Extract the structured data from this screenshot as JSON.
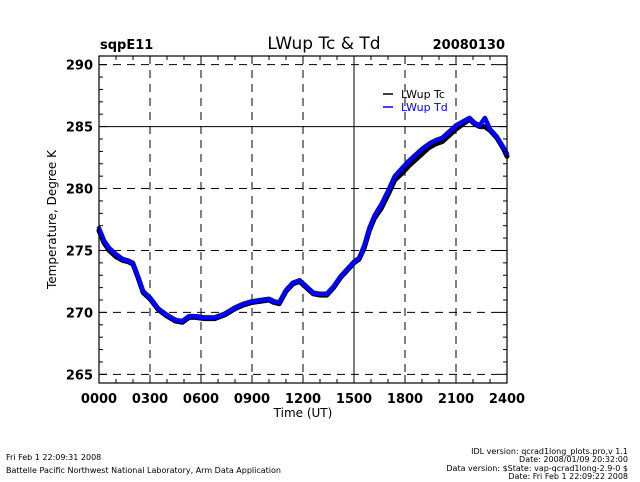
{
  "header": {
    "site": "sqpE11",
    "title": "LWup Tc & Td",
    "date": "20080130"
  },
  "footer": {
    "left_line1": "Fri Feb  1 22:09:31 2008",
    "left_line2": "Battelle Pacific Northwest National Laboratory, Arm Data Application",
    "right_lines": [
      "IDL version: qcrad1long_plots.pro,v 1.1",
      "Date: 2008/01/09 20:32:00",
      "Data version: $State: vap-qcrad1long-2.9-0 $",
      "Date: Fri Feb  1 22:09:22 2008"
    ]
  },
  "chart_data": {
    "type": "line",
    "title": "LWup Tc & Td",
    "xlabel": "Time (UT)",
    "ylabel": "Temperature, Degree K",
    "xlim": [
      0,
      24
    ],
    "ylim": [
      264.3,
      290.7
    ],
    "x_ticks": [
      0,
      3,
      6,
      9,
      12,
      15,
      18,
      21,
      24
    ],
    "x_tick_labels": [
      "0000",
      "0300",
      "0600",
      "0900",
      "1200",
      "1500",
      "1800",
      "2100",
      "2400"
    ],
    "y_ticks": [
      265,
      270,
      275,
      280,
      285,
      290
    ],
    "y_tick_labels": [
      "265",
      "270",
      "275",
      "280",
      "285",
      "290"
    ],
    "grid": true,
    "legend_position": "top-right",
    "series": [
      {
        "name": "LWup Tc",
        "color": "#000000",
        "x": [
          0,
          0.3,
          0.6,
          1.0,
          1.4,
          1.7,
          2.0,
          2.3,
          2.6,
          3.0,
          3.5,
          4.0,
          4.5,
          4.9,
          5.3,
          5.7,
          6.2,
          6.8,
          7.4,
          8.0,
          8.5,
          9.0,
          9.5,
          10.0,
          10.3,
          10.6,
          11.0,
          11.4,
          11.8,
          12.2,
          12.6,
          13.0,
          13.4,
          13.8,
          14.2,
          14.6,
          15.0,
          15.3,
          15.6,
          15.9,
          16.2,
          16.6,
          17.0,
          17.4,
          17.8,
          18.2,
          18.6,
          19.0,
          19.4,
          19.8,
          20.2,
          20.6,
          21.0,
          21.4,
          21.8,
          22.1,
          22.4,
          22.7,
          23.0,
          23.4,
          23.8,
          24.0
        ],
        "values": [
          276.6,
          275.6,
          275.0,
          274.5,
          274.2,
          274.1,
          273.9,
          272.8,
          271.6,
          271.1,
          270.2,
          269.7,
          269.3,
          269.2,
          269.6,
          269.6,
          269.5,
          269.5,
          269.8,
          270.3,
          270.6,
          270.8,
          270.9,
          271.0,
          270.8,
          270.7,
          271.7,
          272.3,
          272.5,
          272.0,
          271.5,
          271.4,
          271.4,
          272.0,
          272.8,
          273.4,
          274.0,
          274.3,
          275.2,
          276.6,
          277.6,
          278.4,
          279.5,
          280.7,
          281.2,
          281.8,
          282.3,
          282.8,
          283.3,
          283.6,
          283.8,
          284.3,
          284.8,
          285.2,
          285.6,
          285.2,
          285.0,
          285.0,
          284.7,
          284.1,
          283.2,
          282.6
        ]
      },
      {
        "name": "LWup Td",
        "color": "#0000ff",
        "x": [
          0,
          0.3,
          0.6,
          1.0,
          1.4,
          1.7,
          2.0,
          2.3,
          2.6,
          3.0,
          3.5,
          4.0,
          4.5,
          4.9,
          5.3,
          5.7,
          6.2,
          6.8,
          7.4,
          8.0,
          8.5,
          9.0,
          9.5,
          10.0,
          10.3,
          10.6,
          11.0,
          11.4,
          11.8,
          12.2,
          12.6,
          13.0,
          13.4,
          13.8,
          14.2,
          14.6,
          15.0,
          15.3,
          15.6,
          15.9,
          16.2,
          16.6,
          17.0,
          17.4,
          17.8,
          18.2,
          18.6,
          19.0,
          19.4,
          19.8,
          20.2,
          20.6,
          21.0,
          21.4,
          21.8,
          22.1,
          22.4,
          22.7,
          23.0,
          23.4,
          23.8,
          24.0
        ],
        "values": [
          276.8,
          275.8,
          275.2,
          274.7,
          274.3,
          274.2,
          274.0,
          272.9,
          271.7,
          271.2,
          270.3,
          269.8,
          269.4,
          269.3,
          269.7,
          269.7,
          269.6,
          269.6,
          269.9,
          270.4,
          270.7,
          270.9,
          271.0,
          271.1,
          270.9,
          270.8,
          271.8,
          272.4,
          272.6,
          272.1,
          271.6,
          271.5,
          271.5,
          272.1,
          272.9,
          273.5,
          274.1,
          274.4,
          275.4,
          276.8,
          277.8,
          278.7,
          279.8,
          281.0,
          281.6,
          282.2,
          282.7,
          283.2,
          283.6,
          283.9,
          284.1,
          284.6,
          285.1,
          285.4,
          285.7,
          285.3,
          285.1,
          285.7,
          284.8,
          284.2,
          283.3,
          282.8
        ]
      }
    ]
  }
}
